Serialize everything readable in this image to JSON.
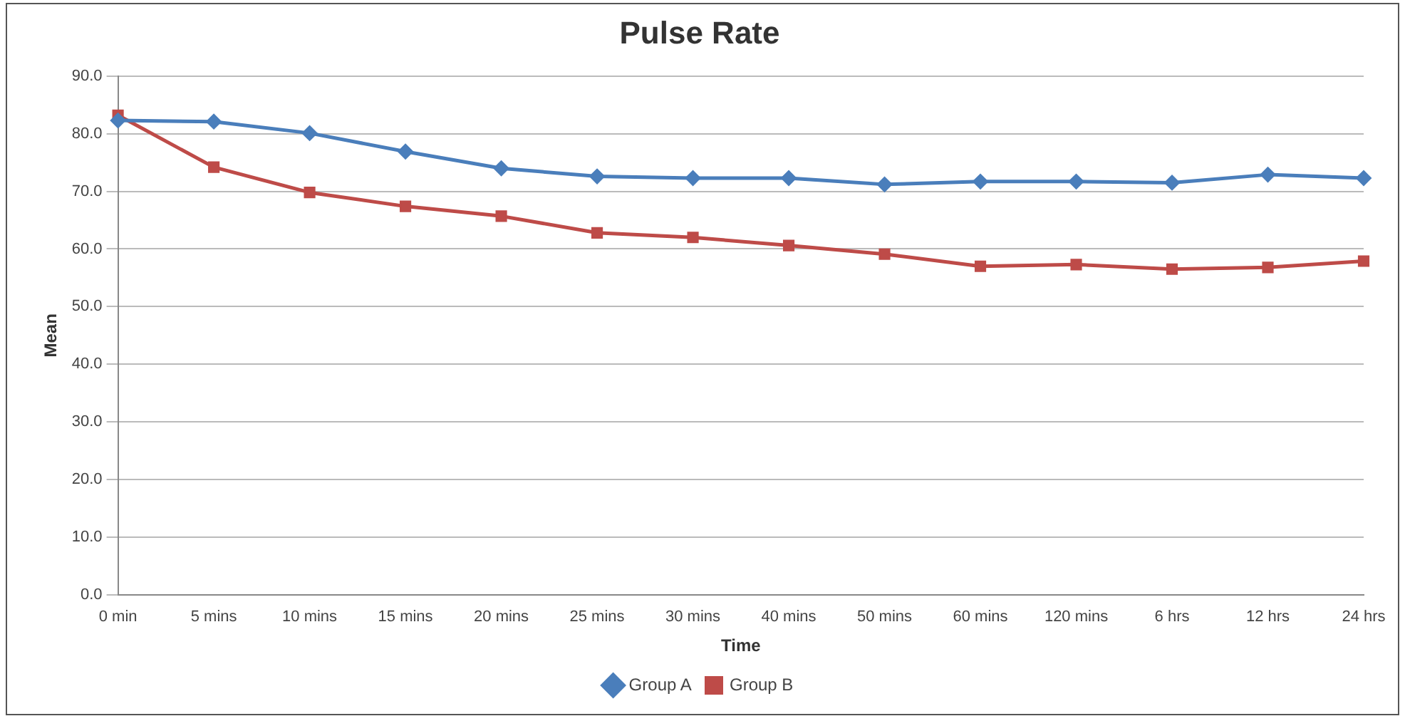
{
  "chart_data": {
    "type": "line",
    "title": "Pulse Rate",
    "xlabel": "Time",
    "ylabel": "Mean",
    "categories": [
      "0 min",
      "5 mins",
      "10 mins",
      "15 mins",
      "20 mins",
      "25 mins",
      "30 mins",
      "40 mins",
      "50 mins",
      "60 mins",
      "120 mins",
      "6 hrs",
      "12 hrs",
      "24 hrs"
    ],
    "series": [
      {
        "name": "Group A",
        "color": "#4a7ebb",
        "marker": "diamond",
        "values": [
          82.3,
          82.1,
          80.1,
          76.9,
          74.0,
          72.6,
          72.3,
          72.3,
          71.2,
          71.7,
          71.7,
          71.5,
          72.9,
          72.3
        ]
      },
      {
        "name": "Group B",
        "color": "#be4b48",
        "marker": "square",
        "values": [
          83.2,
          74.2,
          69.8,
          67.4,
          65.7,
          62.8,
          62.0,
          60.6,
          59.1,
          57.0,
          57.3,
          56.5,
          56.8,
          57.9
        ]
      }
    ],
    "ylim": [
      0,
      90
    ],
    "yticks": [
      {
        "value": 0,
        "label": "0.0"
      },
      {
        "value": 10,
        "label": "10.0"
      },
      {
        "value": 20,
        "label": "20.0"
      },
      {
        "value": 30,
        "label": "30.0"
      },
      {
        "value": 40,
        "label": "40.0"
      },
      {
        "value": 50,
        "label": "50.0"
      },
      {
        "value": 60,
        "label": "60.0"
      },
      {
        "value": 70,
        "label": "70.0"
      },
      {
        "value": 80,
        "label": "80.0"
      },
      {
        "value": 90,
        "label": "90.0"
      }
    ],
    "grid": "y",
    "legend": "bottom",
    "line_style": "solid"
  }
}
